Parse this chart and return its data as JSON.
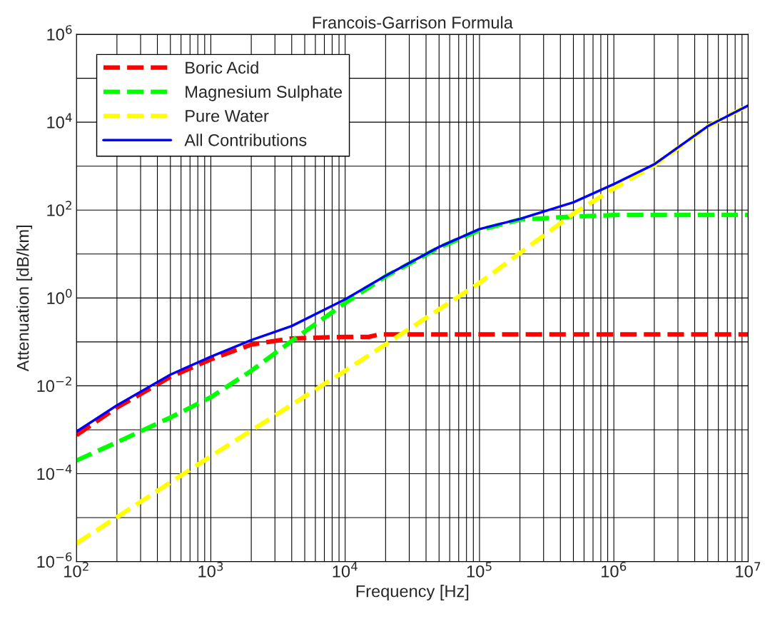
{
  "chart_data": {
    "type": "line",
    "title": "Francois-Garrison Formula",
    "xlabel": "Frequency [Hz]",
    "ylabel": "Attenuation [dB/km]",
    "log": "xy",
    "grid": true,
    "legend": "top left",
    "xlim": [
      100,
      10000000
    ],
    "ylim": [
      1e-06,
      1000000
    ],
    "xticks": [
      {
        "value": 100,
        "label": "10$^{2}$"
      },
      {
        "value": 200,
        "label": null
      },
      {
        "value": 300,
        "label": null
      },
      {
        "value": 400,
        "label": null
      },
      {
        "value": 500,
        "label": null
      },
      {
        "value": 600,
        "label": null
      },
      {
        "value": 700,
        "label": null
      },
      {
        "value": 800,
        "label": null
      },
      {
        "value": 900,
        "label": null
      },
      {
        "value": 1000,
        "label": "10$^{3}$"
      },
      {
        "value": 2000,
        "label": null
      },
      {
        "value": 3000,
        "label": null
      },
      {
        "value": 4000,
        "label": null
      },
      {
        "value": 5000,
        "label": null
      },
      {
        "value": 6000,
        "label": null
      },
      {
        "value": 7000,
        "label": null
      },
      {
        "value": 8000,
        "label": null
      },
      {
        "value": 9000,
        "label": null
      },
      {
        "value": 10000,
        "label": "10$^{4}$"
      },
      {
        "value": 20000,
        "label": null
      },
      {
        "value": 30000,
        "label": null
      },
      {
        "value": 40000,
        "label": null
      },
      {
        "value": 50000,
        "label": null
      },
      {
        "value": 60000,
        "label": null
      },
      {
        "value": 70000,
        "label": null
      },
      {
        "value": 80000,
        "label": null
      },
      {
        "value": 90000,
        "label": null
      },
      {
        "value": 100000,
        "label": "10$^{5}$"
      },
      {
        "value": 200000,
        "label": null
      },
      {
        "value": 300000,
        "label": null
      },
      {
        "value": 400000,
        "label": null
      },
      {
        "value": 500000,
        "label": null
      },
      {
        "value": 600000,
        "label": null
      },
      {
        "value": 700000,
        "label": null
      },
      {
        "value": 800000,
        "label": null
      },
      {
        "value": 900000,
        "label": null
      },
      {
        "value": 1000000,
        "label": "10$^{6}$"
      },
      {
        "value": 2000000,
        "label": null
      },
      {
        "value": 3000000,
        "label": null
      },
      {
        "value": 4000000,
        "label": null
      },
      {
        "value": 5000000,
        "label": null
      },
      {
        "value": 6000000,
        "label": null
      },
      {
        "value": 7000000,
        "label": null
      },
      {
        "value": 8000000,
        "label": null
      },
      {
        "value": 9000000,
        "label": null
      },
      {
        "value": 10000000,
        "label": "10$^{7}$"
      }
    ],
    "yticks": [
      {
        "value": 1e-06,
        "label": "10$^{−6}$"
      },
      {
        "value": 1e-05,
        "label": null
      },
      {
        "value": 0.0001,
        "label": "10$^{−4}$"
      },
      {
        "value": 0.001,
        "label": null
      },
      {
        "value": 0.01,
        "label": "10$^{−2}$"
      },
      {
        "value": 0.1,
        "label": null
      },
      {
        "value": 1,
        "label": "10$^{0}$"
      },
      {
        "value": 10,
        "label": null
      },
      {
        "value": 100,
        "label": "10$^{2}$"
      },
      {
        "value": 1000,
        "label": null
      },
      {
        "value": 10000,
        "label": "10$^{4}$"
      },
      {
        "value": 100000,
        "label": null
      },
      {
        "value": 1000000,
        "label": "10$^{6}$"
      }
    ],
    "series": [
      {
        "name": "Boric Acid",
        "color": "#ff0000",
        "line_style": "dashed",
        "x": [
          100,
          200,
          500,
          1000,
          2000,
          4000,
          10000,
          15000,
          18000,
          10000000
        ],
        "values": [
          0.00076,
          0.0032,
          0.016,
          0.04,
          0.087,
          0.12,
          0.13,
          0.13,
          0.148,
          0.148
        ]
      },
      {
        "name": "Magnesium Sulphate",
        "color": "#00ff00",
        "line_style": "dashed",
        "x": [
          100,
          200,
          500,
          1000,
          2000,
          4000,
          10000,
          20000,
          50000,
          100000,
          200000,
          500000,
          1000000,
          10000000
        ],
        "values": [
          0.0002,
          0.00052,
          0.0019,
          0.0055,
          0.022,
          0.105,
          0.77,
          3.1,
          14,
          35,
          61,
          71,
          77,
          77
        ]
      },
      {
        "name": "Pure Water",
        "color": "#ffff00",
        "line_style": "dashed",
        "x": [
          100,
          1000,
          10000,
          100000,
          500000,
          1000000,
          2000000,
          5000000,
          10000000
        ],
        "values": [
          2.6e-06,
          0.00025,
          0.022,
          2.2,
          83,
          310,
          1050,
          8000,
          24000
        ]
      },
      {
        "name": "All Contributions",
        "color": "#0000ff",
        "line_style": "solid",
        "x": [
          100,
          200,
          500,
          1000,
          2000,
          4000,
          10000,
          20000,
          50000,
          100000,
          200000,
          500000,
          1000000,
          2000000,
          5000000,
          10000000
        ],
        "values": [
          0.00091,
          0.0036,
          0.018,
          0.046,
          0.11,
          0.23,
          0.93,
          3.2,
          14.5,
          37,
          63,
          150,
          390,
          1100,
          8100,
          24000
        ]
      }
    ]
  }
}
